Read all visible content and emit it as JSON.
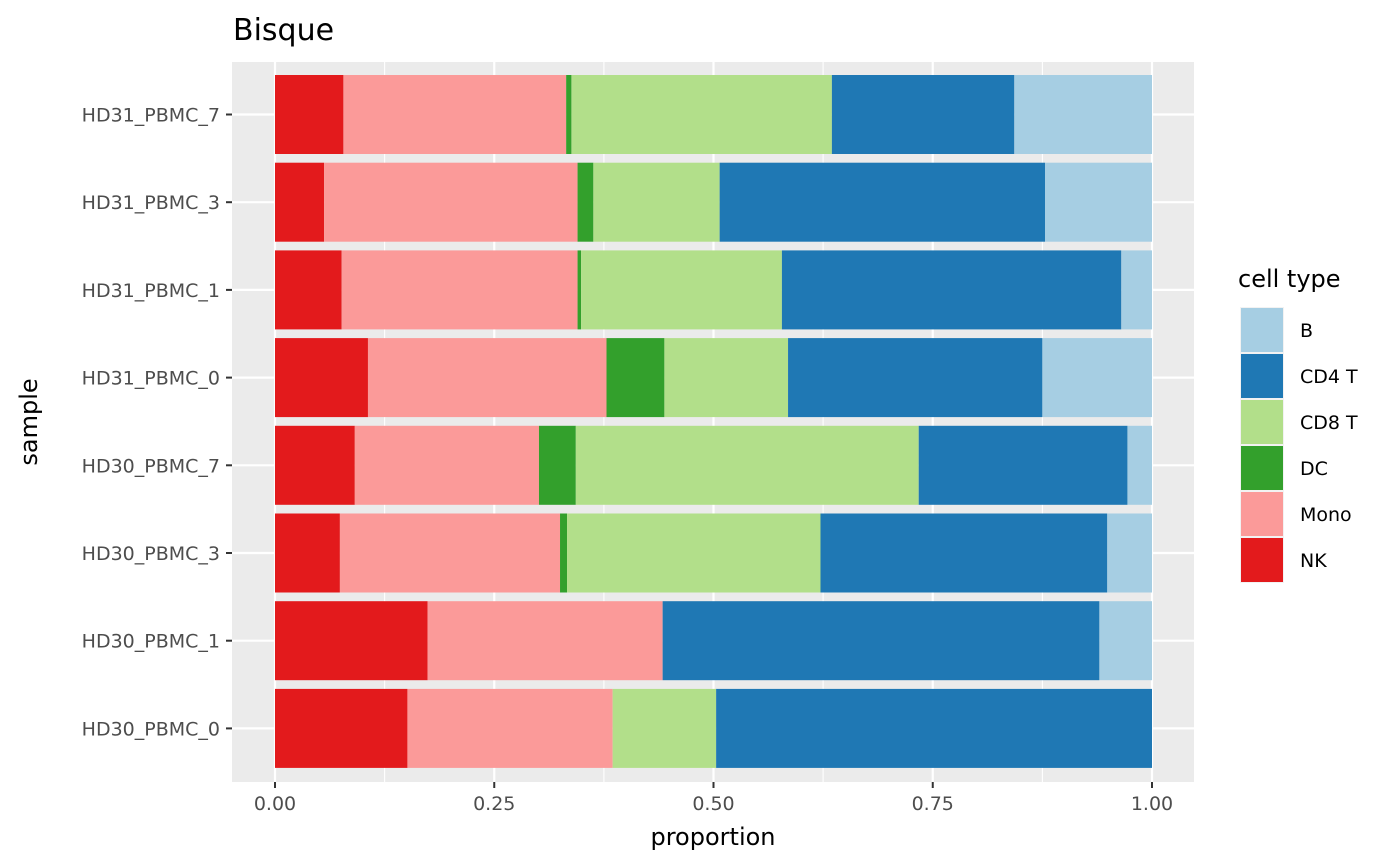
{
  "chart_data": {
    "type": "bar",
    "orientation": "horizontal",
    "stacked": true,
    "title": "Bisque",
    "xlabel": "proportion",
    "ylabel": "sample",
    "xlim": [
      0,
      1
    ],
    "xticks": [
      0,
      0.25,
      0.5,
      0.75,
      1
    ],
    "xtick_labels": [
      "0.00",
      "0.25",
      "0.50",
      "0.75",
      "1.00"
    ],
    "grid": true,
    "legend_position": "right",
    "legend_title": "cell type",
    "legend_order": [
      "B",
      "CD4 T",
      "CD8 T",
      "DC",
      "Mono",
      "NK"
    ],
    "stack_order": [
      "NK",
      "Mono",
      "DC",
      "CD8 T",
      "CD4 T",
      "B"
    ],
    "categories": [
      "HD31_PBMC_7",
      "HD31_PBMC_3",
      "HD31_PBMC_1",
      "HD31_PBMC_0",
      "HD30_PBMC_7",
      "HD30_PBMC_3",
      "HD30_PBMC_1",
      "HD30_PBMC_0"
    ],
    "series": [
      {
        "name": "NK",
        "color": "#e31a1c",
        "values": [
          0.078,
          0.056,
          0.076,
          0.106,
          0.091,
          0.074,
          0.174,
          0.151
        ]
      },
      {
        "name": "Mono",
        "color": "#fb9a99",
        "values": [
          0.254,
          0.289,
          0.269,
          0.272,
          0.21,
          0.251,
          0.268,
          0.234
        ]
      },
      {
        "name": "DC",
        "color": "#33a02c",
        "values": [
          0.006,
          0.018,
          0.004,
          0.066,
          0.042,
          0.008,
          0.0,
          0.0
        ]
      },
      {
        "name": "CD8 T",
        "color": "#b2df8a",
        "values": [
          0.297,
          0.144,
          0.229,
          0.141,
          0.391,
          0.289,
          0.0,
          0.118
        ]
      },
      {
        "name": "CD4 T",
        "color": "#1f78b4",
        "values": [
          0.208,
          0.371,
          0.387,
          0.29,
          0.238,
          0.327,
          0.498,
          0.497
        ]
      },
      {
        "name": "B",
        "color": "#a6cee3",
        "values": [
          0.157,
          0.122,
          0.035,
          0.125,
          0.028,
          0.051,
          0.06,
          0.0
        ]
      }
    ]
  }
}
